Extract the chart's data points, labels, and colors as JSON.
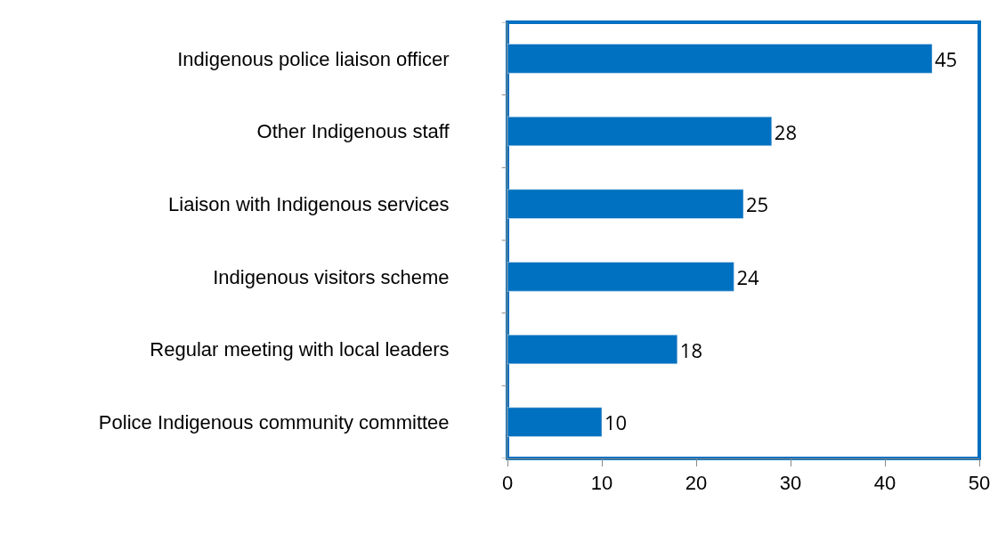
{
  "chart_data": {
    "type": "bar",
    "orientation": "horizontal",
    "categories": [
      "Indigenous police liaison officer",
      "Other Indigenous staff",
      "Liaison with Indigenous services",
      "Indigenous visitors scheme",
      "Regular meeting with local leaders",
      "Police Indigenous community committee"
    ],
    "values": [
      45,
      28,
      25,
      24,
      18,
      10
    ],
    "color": "#0070c0",
    "data_labels": true,
    "xlim": [
      0,
      50
    ],
    "xticks": [
      0,
      10,
      20,
      30,
      40,
      50
    ],
    "grid": false
  }
}
